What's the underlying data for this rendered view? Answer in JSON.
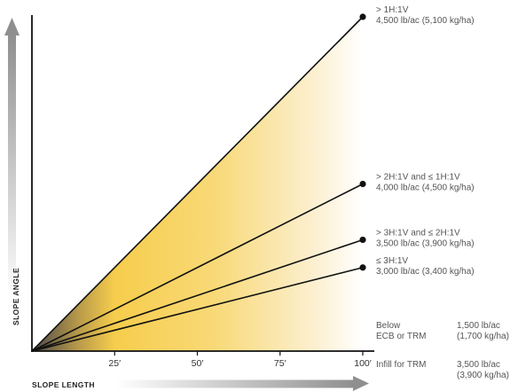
{
  "chart_data": {
    "type": "line",
    "xlabel": "SLOPE LENGTH",
    "ylabel": "SLOPE ANGLE",
    "x_ticks": [
      "25′",
      "50′",
      "75′",
      "100′"
    ],
    "x_tick_values": [
      25,
      50,
      75,
      100
    ],
    "xlim": [
      0,
      110
    ],
    "series": [
      {
        "name": "> 1H:1V",
        "rate": "4,500 lb/ac (5,100 kg/ha)",
        "x": [
          0,
          100
        ],
        "y": [
          0,
          100
        ]
      },
      {
        "name": "> 2H:1V and ≤ 1H:1V",
        "rate": "4,000 lb/ac (4,500 kg/ha)",
        "x": [
          0,
          100
        ],
        "y": [
          0,
          50
        ]
      },
      {
        "name": "> 3H:1V and ≤ 2H:1V",
        "rate": "3,500 lb/ac (3,900 kg/ha)",
        "x": [
          0,
          100
        ],
        "y": [
          0,
          33.3
        ]
      },
      {
        "name": "≤ 3H:1V",
        "rate": "3,000 lb/ac (3,400 kg/ha)",
        "x": [
          0,
          100
        ],
        "y": [
          0,
          25
        ]
      }
    ],
    "notes": [
      {
        "label": "Below",
        "label2": "ECB or TRM",
        "rate": "1,500 lb/ac",
        "rate2": "(1,700 kg/ha)"
      },
      {
        "label": "Infill for TRM",
        "label2": "",
        "rate": "3,500 lb/ac",
        "rate2": "(3,900 kg/ha)"
      }
    ],
    "colors": {
      "fill_dark": "#4a4848",
      "fill_gold": "#f6cd4c",
      "line": "#111111",
      "axis_arrow": "#9a9a9a"
    }
  }
}
